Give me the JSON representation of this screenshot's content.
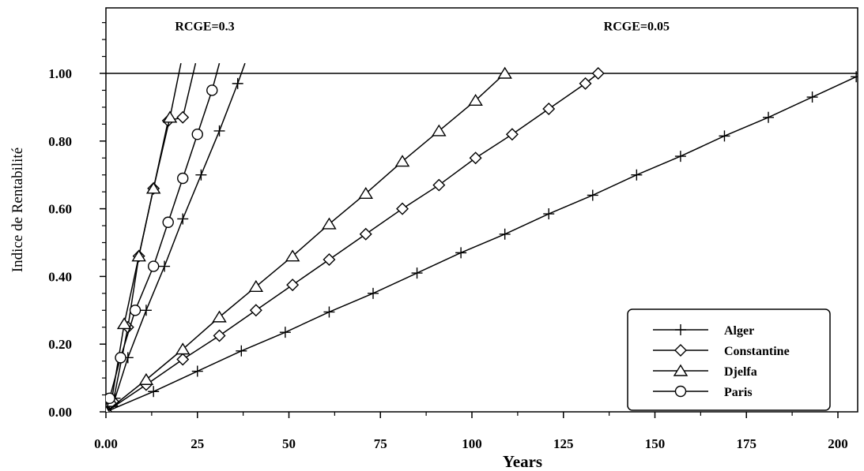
{
  "chart_data": {
    "type": "line",
    "xlabel": "Years",
    "ylabel": "Indice de Rentabilité",
    "xlim": [
      0,
      205
    ],
    "ylim": [
      0,
      1.2
    ],
    "xticks": [
      0,
      25,
      50,
      75,
      100,
      125,
      150,
      175,
      200
    ],
    "xtick_labels": [
      "0.00",
      "25",
      "50",
      "75",
      "100",
      "125",
      "150",
      "175",
      "200"
    ],
    "yticks": [
      0,
      0.2,
      0.4,
      0.6,
      0.8,
      1.0
    ],
    "ytick_labels": [
      "0.00",
      "0.20",
      "0.40",
      "0.60",
      "0.80",
      "1.00"
    ],
    "reference_line": 1.0,
    "grid": false,
    "legend_position": "bottom-right",
    "annotations": [
      {
        "text": "RCGE=0.3",
        "x": 27,
        "y": 1.08
      },
      {
        "text": "RCGE=0.05",
        "x": 145,
        "y": 1.08
      }
    ],
    "series": [
      {
        "name": "Alger",
        "marker": "plus",
        "group": "RCGE=0.3",
        "x": [
          0,
          2.5,
          6,
          11,
          16,
          21,
          26,
          31,
          36,
          38
        ],
        "y": [
          0.0,
          0.04,
          0.16,
          0.3,
          0.43,
          0.57,
          0.7,
          0.83,
          0.97,
          1.03
        ]
      },
      {
        "name": "Constantine",
        "marker": "diamond",
        "group": "RCGE=0.3",
        "x": [
          0,
          2,
          6,
          9,
          13,
          17,
          21,
          24.5
        ],
        "y": [
          0.0,
          0.03,
          0.25,
          0.46,
          0.66,
          0.86,
          0.87,
          1.03
        ]
      },
      {
        "name": "Djelfa",
        "marker": "triangle",
        "group": "RCGE=0.3",
        "x": [
          0,
          1.5,
          5,
          9,
          13,
          17.5,
          20.5
        ],
        "y": [
          0.0,
          0.03,
          0.26,
          0.46,
          0.66,
          0.87,
          1.03
        ]
      },
      {
        "name": "Paris",
        "marker": "circle",
        "group": "RCGE=0.3",
        "x": [
          0,
          1,
          4,
          8,
          13,
          17,
          21,
          25,
          29,
          31
        ],
        "y": [
          0.0,
          0.04,
          0.16,
          0.3,
          0.43,
          0.56,
          0.69,
          0.82,
          0.95,
          1.03
        ]
      },
      {
        "name": "Alger",
        "marker": "plus",
        "group": "RCGE=0.05",
        "x": [
          0,
          13,
          25,
          37,
          49,
          61,
          73,
          85,
          97,
          109,
          121,
          133,
          145,
          157,
          169,
          181,
          193,
          205
        ],
        "y": [
          0.0,
          0.06,
          0.12,
          0.18,
          0.235,
          0.295,
          0.35,
          0.41,
          0.47,
          0.525,
          0.585,
          0.64,
          0.7,
          0.755,
          0.815,
          0.87,
          0.93,
          0.99
        ]
      },
      {
        "name": "Constantine",
        "marker": "diamond",
        "group": "RCGE=0.05",
        "x": [
          0,
          11,
          21,
          31,
          41,
          51,
          61,
          71,
          81,
          91,
          101,
          111,
          121,
          131,
          134.5
        ],
        "y": [
          0.0,
          0.08,
          0.155,
          0.225,
          0.3,
          0.375,
          0.45,
          0.525,
          0.6,
          0.67,
          0.75,
          0.82,
          0.895,
          0.97,
          1.0
        ]
      },
      {
        "name": "Djelfa",
        "marker": "triangle",
        "group": "RCGE=0.05",
        "x": [
          0,
          11,
          21,
          31,
          41,
          51,
          61,
          71,
          81,
          91,
          101,
          109
        ],
        "y": [
          0.0,
          0.095,
          0.185,
          0.28,
          0.37,
          0.46,
          0.555,
          0.645,
          0.74,
          0.83,
          0.92,
          1.0
        ]
      }
    ],
    "legend": [
      {
        "name": "Alger",
        "marker": "plus"
      },
      {
        "name": "Constantine",
        "marker": "diamond"
      },
      {
        "name": "Djelfa",
        "marker": "triangle"
      },
      {
        "name": "Paris",
        "marker": "circle"
      }
    ]
  }
}
